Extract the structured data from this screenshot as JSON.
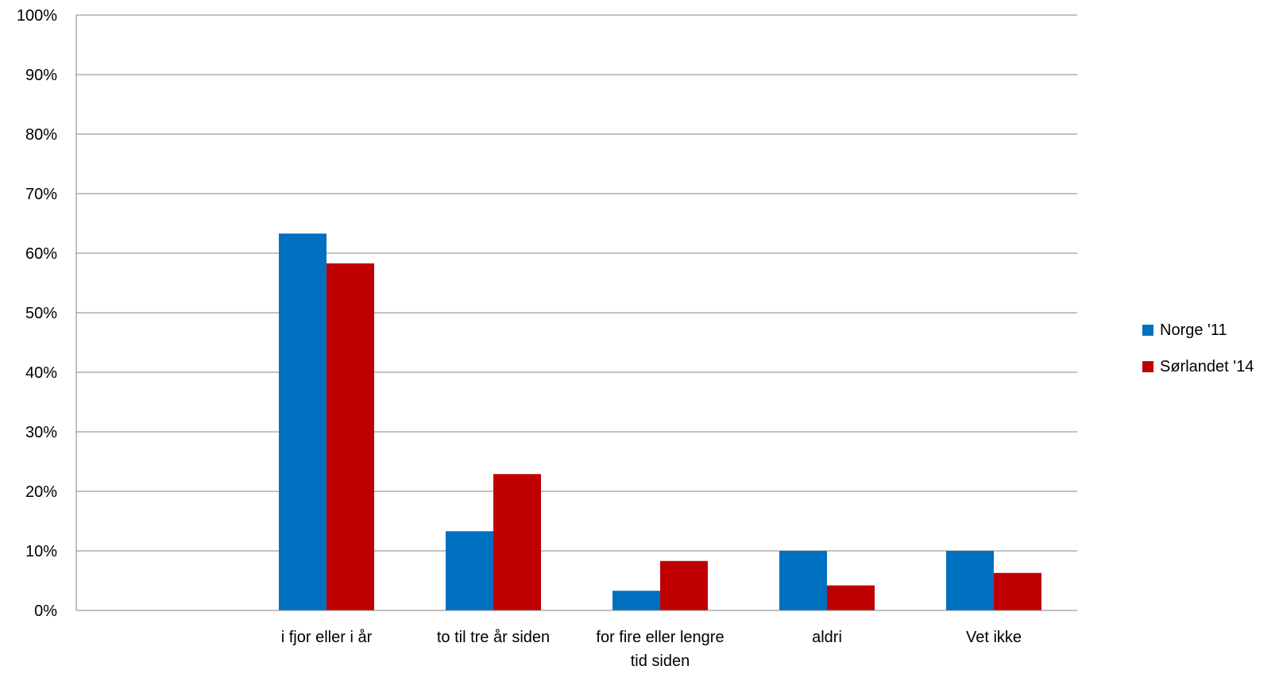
{
  "chart_data": {
    "type": "bar",
    "title": "",
    "xlabel": "",
    "ylabel": "",
    "categories": [
      "",
      "i fjor eller i år",
      "to til tre år siden",
      "for fire eller lengre tid siden",
      "aldri",
      "Vet ikke"
    ],
    "series": [
      {
        "name": "Norge '11",
        "color": "#0070C0",
        "values": [
          null,
          63.3,
          13.3,
          3.3,
          10.0,
          10.0
        ]
      },
      {
        "name": "Sørlandet '14",
        "color": "#C00000",
        "values": [
          null,
          58.3,
          22.9,
          8.3,
          4.2,
          6.3
        ]
      }
    ],
    "ylim": [
      0,
      100
    ],
    "yticks": [
      0,
      10,
      20,
      30,
      40,
      50,
      60,
      70,
      80,
      90,
      100
    ],
    "ytick_labels": [
      "0%",
      "10%",
      "20%",
      "30%",
      "40%",
      "50%",
      "60%",
      "70%",
      "80%",
      "90%",
      "100%"
    ],
    "grid": true,
    "legend_position": "right"
  }
}
